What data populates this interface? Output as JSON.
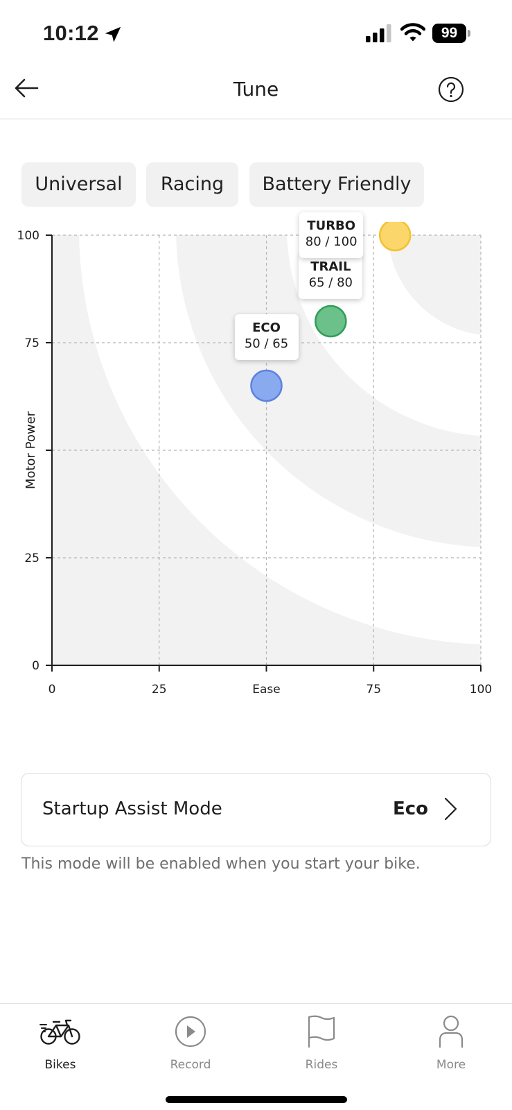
{
  "status_bar": {
    "time": "10:12",
    "battery": "99"
  },
  "header": {
    "title": "Tune"
  },
  "presets": [
    {
      "label": "Universal"
    },
    {
      "label": "Racing"
    },
    {
      "label": "Battery Friendly"
    }
  ],
  "chart_data": {
    "type": "scatter",
    "xlabel": "Ease",
    "ylabel": "Motor Power",
    "xlim": [
      0,
      100
    ],
    "ylim": [
      0,
      100
    ],
    "x_ticks": [
      "0",
      "25",
      "Ease",
      "75",
      "100"
    ],
    "y_ticks": [
      "0",
      "25",
      "",
      "75",
      "100"
    ],
    "grid": true,
    "points": [
      {
        "name": "ECO",
        "x": 50,
        "y": 65,
        "value_label": "50 / 65",
        "color": "#8aaaf0",
        "stroke": "#5d82e0"
      },
      {
        "name": "TRAIL",
        "x": 65,
        "y": 80,
        "value_label": "65 / 80",
        "color": "#6cc08a",
        "stroke": "#2f9e5a"
      },
      {
        "name": "TURBO",
        "x": 80,
        "y": 100,
        "value_label": "80 / 100",
        "color": "#fbd66a",
        "stroke": "#f2c230"
      }
    ]
  },
  "startup_assist": {
    "label": "Startup Assist Mode",
    "value": "Eco",
    "note": "This mode will be enabled when you start your bike."
  },
  "tabs": [
    {
      "label": "Bikes",
      "icon": "bike-icon",
      "active": true
    },
    {
      "label": "Record",
      "icon": "record-icon",
      "active": false
    },
    {
      "label": "Rides",
      "icon": "flag-icon",
      "active": false
    },
    {
      "label": "More",
      "icon": "person-icon",
      "active": false
    }
  ]
}
